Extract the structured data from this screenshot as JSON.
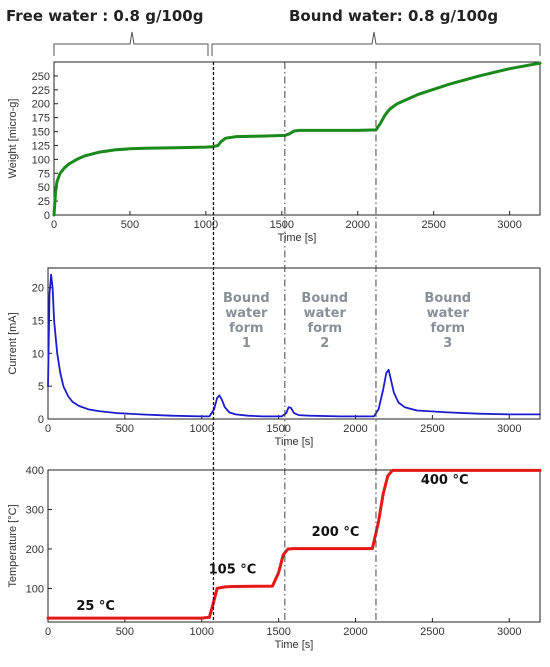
{
  "header": {
    "free_water": "Free water : 0.8 g/100g",
    "bound_water": "Bound water: 0.8 g/100g"
  },
  "phase_boundaries": [
    1050,
    1520,
    2120
  ],
  "chart_data": [
    {
      "id": "weight",
      "type": "line",
      "ylabel": "Weight [micro-g]",
      "xlabel": "Time [s]",
      "xlim": [
        0,
        3200
      ],
      "ylim": [
        0,
        275
      ],
      "xticks": [
        0,
        500,
        1000,
        1500,
        2000,
        2500,
        3000
      ],
      "yticks": [
        0,
        25,
        50,
        75,
        100,
        125,
        150,
        175,
        200,
        225,
        250
      ],
      "color": "#1a8a1a",
      "x": [
        0,
        10,
        20,
        40,
        70,
        100,
        150,
        200,
        300,
        400,
        500,
        600,
        800,
        1000,
        1050,
        1080,
        1100,
        1130,
        1200,
        1400,
        1520,
        1550,
        1580,
        1620,
        1800,
        2000,
        2120,
        2150,
        2180,
        2210,
        2260,
        2400,
        2600,
        2800,
        3000,
        3200
      ],
      "y": [
        0,
        40,
        60,
        75,
        85,
        92,
        100,
        106,
        113,
        117,
        119,
        120,
        121,
        122,
        123,
        125,
        132,
        138,
        141,
        142,
        143,
        146,
        151,
        152,
        152,
        152,
        153,
        165,
        180,
        190,
        200,
        217,
        235,
        250,
        263,
        273
      ]
    },
    {
      "id": "current",
      "type": "line",
      "ylabel": "Current [mA]",
      "xlabel": "Time [s]",
      "xlim": [
        0,
        3200
      ],
      "ylim": [
        0,
        23
      ],
      "xticks": [
        0,
        500,
        1000,
        1500,
        2000,
        2500,
        3000
      ],
      "yticks": [
        0,
        5,
        10,
        15,
        20
      ],
      "color": "#1c1ccc",
      "x": [
        0,
        10,
        20,
        30,
        40,
        60,
        80,
        100,
        130,
        160,
        200,
        260,
        330,
        450,
        600,
        800,
        1000,
        1050,
        1080,
        1100,
        1115,
        1130,
        1150,
        1180,
        1220,
        1300,
        1400,
        1520,
        1550,
        1565,
        1580,
        1600,
        1630,
        1700,
        1900,
        2120,
        2150,
        2180,
        2200,
        2215,
        2230,
        2250,
        2280,
        2320,
        2400,
        2600,
        2800,
        3000,
        3200
      ],
      "y": [
        5,
        19,
        22,
        20,
        15,
        10,
        7,
        5,
        3.5,
        2.6,
        2,
        1.5,
        1.2,
        0.9,
        0.7,
        0.5,
        0.4,
        0.4,
        1.5,
        3.2,
        3.6,
        3,
        1.8,
        1,
        0.7,
        0.5,
        0.4,
        0.4,
        0.9,
        1.8,
        1.7,
        0.9,
        0.6,
        0.5,
        0.4,
        0.4,
        1.5,
        4.5,
        7,
        7.5,
        6,
        4,
        2.5,
        1.8,
        1.3,
        1,
        0.8,
        0.7,
        0.7
      ],
      "annotations": [
        {
          "x": 1290,
          "lines": [
            "Bound",
            "water",
            "form",
            "1"
          ]
        },
        {
          "x": 1800,
          "lines": [
            "Bound",
            "water",
            "form",
            "2"
          ]
        },
        {
          "x": 2600,
          "lines": [
            "Bound",
            "water",
            "form",
            "3"
          ]
        }
      ]
    },
    {
      "id": "temperature",
      "type": "line",
      "ylabel": "Temperature [°C]",
      "xlabel": "Time [s]",
      "xlim": [
        0,
        3200
      ],
      "ylim": [
        15,
        400
      ],
      "xticks": [
        0,
        500,
        1000,
        1500,
        2000,
        2500,
        3000
      ],
      "yticks": [
        100,
        200,
        300,
        400
      ],
      "color": "#e61717",
      "x": [
        0,
        1000,
        1050,
        1080,
        1100,
        1150,
        1200,
        1460,
        1500,
        1530,
        1560,
        1600,
        2110,
        2150,
        2180,
        2210,
        2240,
        3200
      ],
      "y": [
        25,
        25,
        27,
        70,
        100,
        104,
        105,
        106,
        140,
        185,
        200,
        201,
        201,
        270,
        340,
        385,
        399,
        399
      ],
      "annotations": [
        {
          "x": 310,
          "y": 45,
          "text": "25 °C"
        },
        {
          "x": 1200,
          "y": 138,
          "text": "105 °C"
        },
        {
          "x": 1870,
          "y": 233,
          "text": "200 °C"
        },
        {
          "x": 2580,
          "y": 365,
          "text": "400 °C"
        }
      ]
    }
  ]
}
